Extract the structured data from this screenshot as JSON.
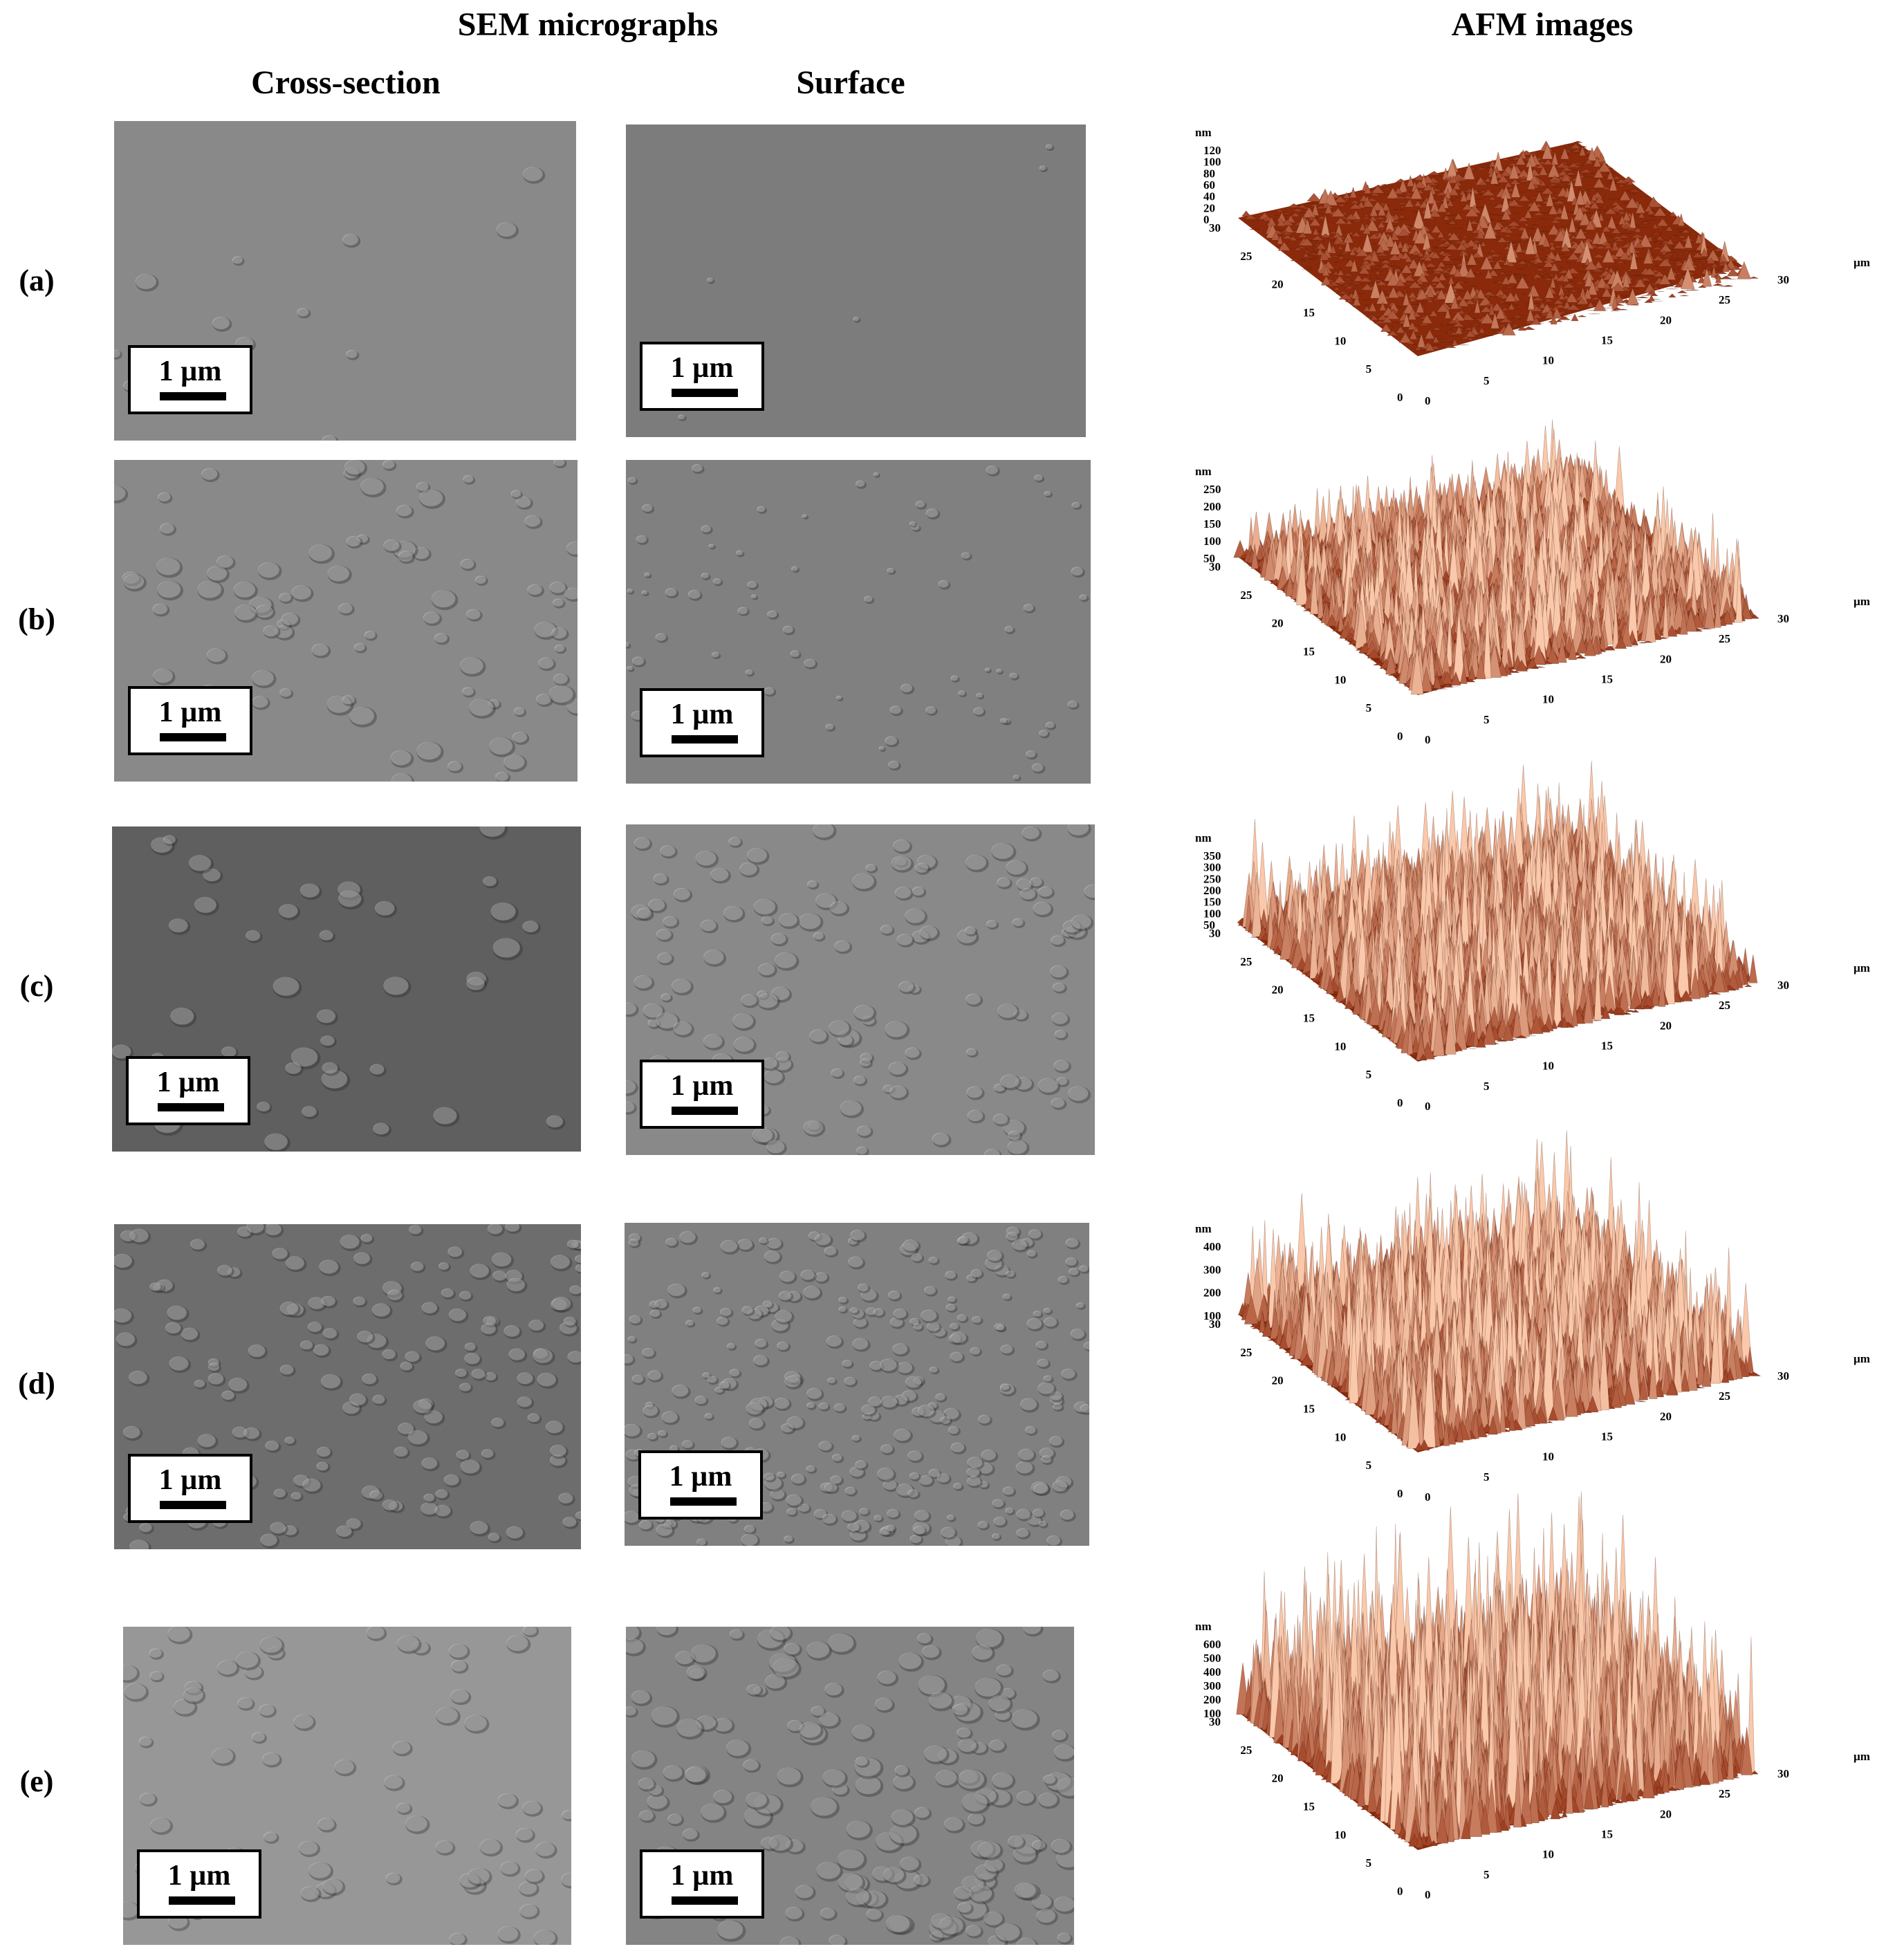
{
  "headers": {
    "sem": "SEM micrographs",
    "afm": "AFM images",
    "cross_section": "Cross-section",
    "surface": "Surface"
  },
  "scale_label": "1 µm",
  "afm_axes": {
    "z_unit": "nm",
    "xy_unit": "µm",
    "left_ticks": [
      "30",
      "25",
      "20",
      "15",
      "10",
      "5",
      "0"
    ],
    "right_ticks": [
      "0",
      "5",
      "10",
      "15",
      "20",
      "25",
      "30"
    ]
  },
  "rows": [
    {
      "label": "(a)",
      "z_ticks": [
        "120",
        "100",
        "80",
        "60",
        "40",
        "20",
        "0"
      ],
      "z_max_nm": 120
    },
    {
      "label": "(b)",
      "z_ticks": [
        "250",
        "200",
        "150",
        "100",
        "50"
      ],
      "z_max_nm": 250
    },
    {
      "label": "(c)",
      "z_ticks": [
        "350",
        "300",
        "250",
        "200",
        "150",
        "100",
        "50"
      ],
      "z_max_nm": 350
    },
    {
      "label": "(d)",
      "z_ticks": [
        "400",
        "300",
        "200",
        "100"
      ],
      "z_max_nm": 400
    },
    {
      "label": "(e)",
      "z_ticks": [
        "600",
        "500",
        "400",
        "300",
        "200",
        "100"
      ],
      "z_max_nm": 600
    }
  ]
}
